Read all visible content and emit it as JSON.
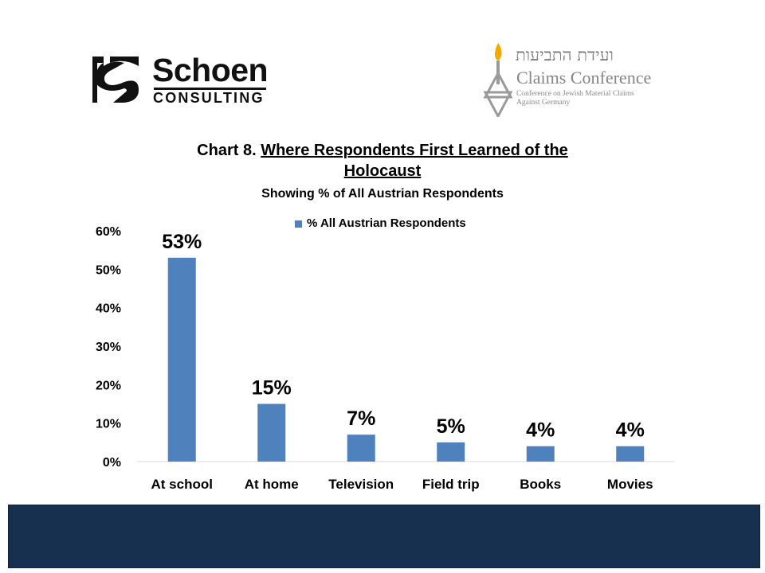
{
  "logos": {
    "schoen": {
      "name": "Schoen",
      "sub": "CONSULTING"
    },
    "claims": {
      "hebrew": "ועידת התביעות",
      "name": "Claims Conference",
      "sub_line1": "Conference on Jewish Material Claims",
      "sub_line2": "Against Germany"
    }
  },
  "chart_data": {
    "type": "bar",
    "title_prefix": "Chart 8. ",
    "title_underlined_line1": "Where Respondents First Learned of the",
    "title_underlined_line2": "Holocaust",
    "subtitle": "Showing % of All Austrian Respondents",
    "categories": [
      "At school",
      "At home",
      "Television",
      "Field trip",
      "Books",
      "Movies"
    ],
    "series": [
      {
        "name": "% All Austrian Respondents",
        "values": [
          53,
          15,
          7,
          5,
          4,
          4
        ],
        "color": "#4f81bd"
      }
    ],
    "data_labels": [
      "53%",
      "15%",
      "7%",
      "5%",
      "4%",
      "4%"
    ],
    "y_ticks": [
      "0%",
      "10%",
      "20%",
      "30%",
      "40%",
      "50%",
      "60%"
    ],
    "ylim": [
      0,
      60
    ],
    "legend_position": "top",
    "grid": false
  },
  "colors": {
    "bar": "#4f81bd",
    "footer": "#17304f"
  }
}
